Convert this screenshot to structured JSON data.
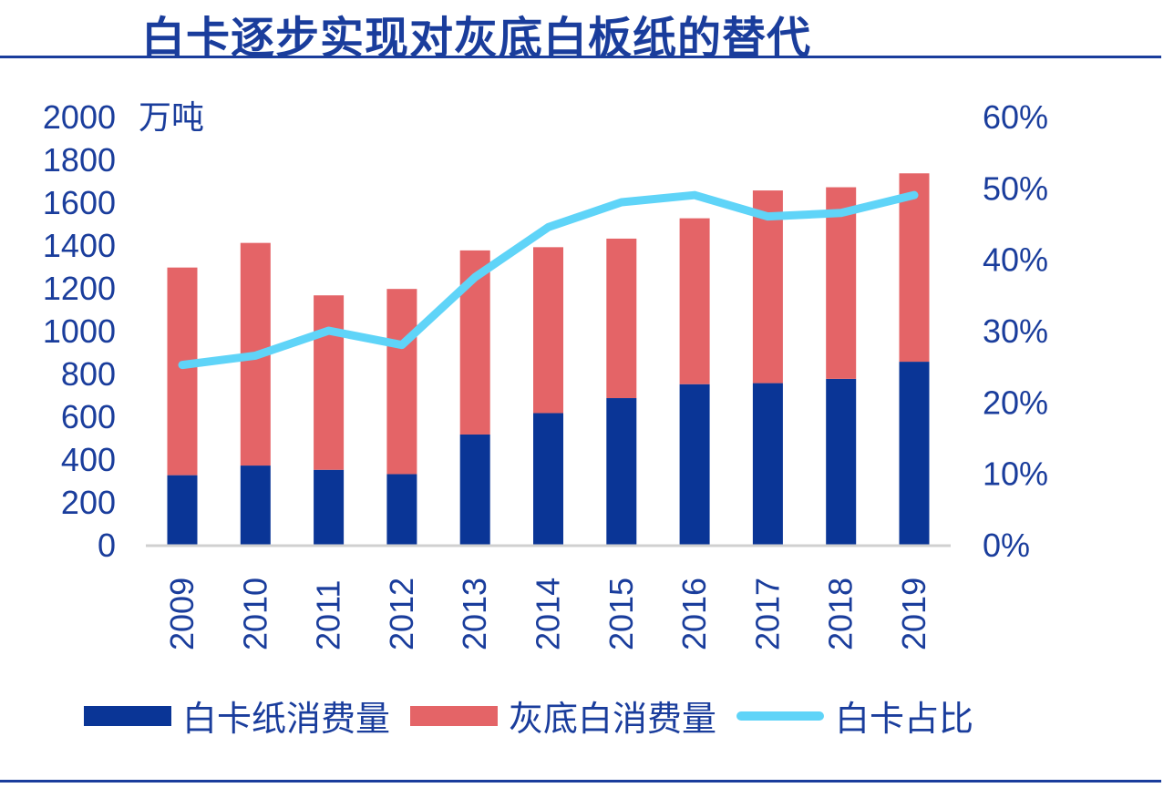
{
  "title": "白卡逐步实现对灰底白板纸的替代",
  "chart_data": {
    "type": "bar",
    "stacked": true,
    "categories": [
      "2009",
      "2010",
      "2011",
      "2012",
      "2013",
      "2014",
      "2015",
      "2016",
      "2017",
      "2018",
      "2019"
    ],
    "series": [
      {
        "name": "白卡纸消费量",
        "type": "bar",
        "axis": "left",
        "color": "#0a3596",
        "values": [
          325,
          370,
          350,
          330,
          515,
          615,
          685,
          750,
          755,
          775,
          855
        ]
      },
      {
        "name": "灰底白消费量",
        "type": "bar",
        "axis": "left",
        "color": "#e46467",
        "values": [
          970,
          1040,
          815,
          865,
          860,
          775,
          745,
          775,
          900,
          895,
          880
        ]
      },
      {
        "name": "白卡占比",
        "type": "line",
        "axis": "right",
        "color": "#5fd4f8",
        "values": [
          0.252,
          0.265,
          0.3,
          0.28,
          0.375,
          0.445,
          0.48,
          0.49,
          0.46,
          0.465,
          0.49
        ]
      }
    ],
    "ylabel_left": "万吨",
    "ylim_left": [
      0,
      2000
    ],
    "yticks_left": [
      "0",
      "200",
      "400",
      "600",
      "800",
      "1000",
      "1200",
      "1400",
      "1600",
      "1800",
      "2000"
    ],
    "ylim_right": [
      0,
      0.6
    ],
    "yticks_right": [
      "0%",
      "10%",
      "20%",
      "30%",
      "40%",
      "50%",
      "60%"
    ],
    "grid": false,
    "legend_position": "bottom"
  }
}
